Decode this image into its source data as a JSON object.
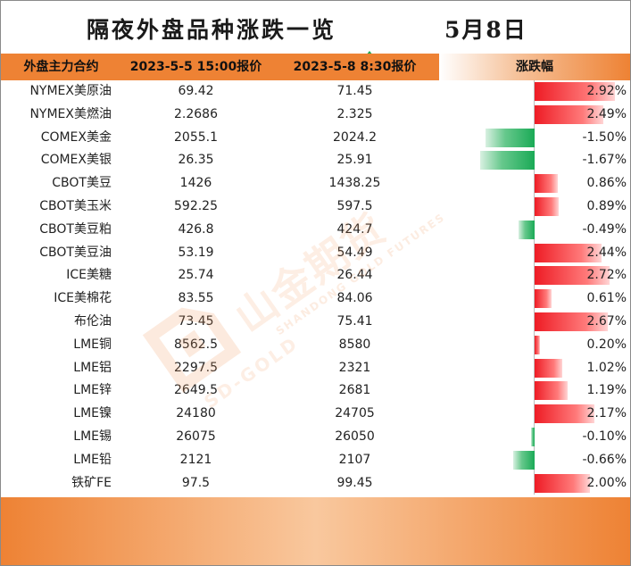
{
  "title": "隔夜外盘品种涨跌一览",
  "date": "5月8日",
  "headers": {
    "name": "外盘主力合约",
    "price1": "2023-5-5 15:00报价",
    "price2": "2023-5-8 8:30报价",
    "change": "涨跌幅"
  },
  "colors": {
    "up": "#ee1c25",
    "down": "#1aaa56",
    "accent": "#ee8234"
  },
  "rows": [
    {
      "name": "NYMEX美原油",
      "p1": "69.42",
      "p2": "71.45",
      "pct": "2.92%",
      "value": 2.92
    },
    {
      "name": "NYMEX美燃油",
      "p1": "2.2686",
      "p2": "2.325",
      "pct": "2.49%",
      "value": 2.49
    },
    {
      "name": "COMEX美金",
      "p1": "2055.1",
      "p2": "2024.2",
      "pct": "-1.50%",
      "value": -1.5
    },
    {
      "name": "COMEX美银",
      "p1": "26.35",
      "p2": "25.91",
      "pct": "-1.67%",
      "value": -1.67
    },
    {
      "name": "CBOT美豆",
      "p1": "1426",
      "p2": "1438.25",
      "pct": "0.86%",
      "value": 0.86
    },
    {
      "name": "CBOT美玉米",
      "p1": "592.25",
      "p2": "597.5",
      "pct": "0.89%",
      "value": 0.89
    },
    {
      "name": "CBOT美豆粕",
      "p1": "426.8",
      "p2": "424.7",
      "pct": "-0.49%",
      "value": -0.49
    },
    {
      "name": "CBOT美豆油",
      "p1": "53.19",
      "p2": "54.49",
      "pct": "2.44%",
      "value": 2.44
    },
    {
      "name": "ICE美糖",
      "p1": "25.74",
      "p2": "26.44",
      "pct": "2.72%",
      "value": 2.72
    },
    {
      "name": "ICE美棉花",
      "p1": "83.55",
      "p2": "84.06",
      "pct": "0.61%",
      "value": 0.61
    },
    {
      "name": "布伦油",
      "p1": "73.45",
      "p2": "75.41",
      "pct": "2.67%",
      "value": 2.67
    },
    {
      "name": "LME铜",
      "p1": "8562.5",
      "p2": "8580",
      "pct": "0.20%",
      "value": 0.2
    },
    {
      "name": "LME铝",
      "p1": "2297.5",
      "p2": "2321",
      "pct": "1.02%",
      "value": 1.02
    },
    {
      "name": "LME锌",
      "p1": "2649.5",
      "p2": "2681",
      "pct": "1.19%",
      "value": 1.19
    },
    {
      "name": "LME镍",
      "p1": "24180",
      "p2": "24705",
      "pct": "2.17%",
      "value": 2.17
    },
    {
      "name": "LME锡",
      "p1": "26075",
      "p2": "26050",
      "pct": "-0.10%",
      "value": -0.1
    },
    {
      "name": "LME铅",
      "p1": "2121",
      "p2": "2107",
      "pct": "-0.66%",
      "value": -0.66
    },
    {
      "name": "铁矿FE",
      "p1": "97.5",
      "p2": "99.45",
      "pct": "2.00%",
      "value": 2.0
    }
  ],
  "watermark": {
    "logo_text": "山金期货",
    "sub_text": "SHANDONG GOLD FUTURES",
    "brand": "SD-GOLD"
  }
}
